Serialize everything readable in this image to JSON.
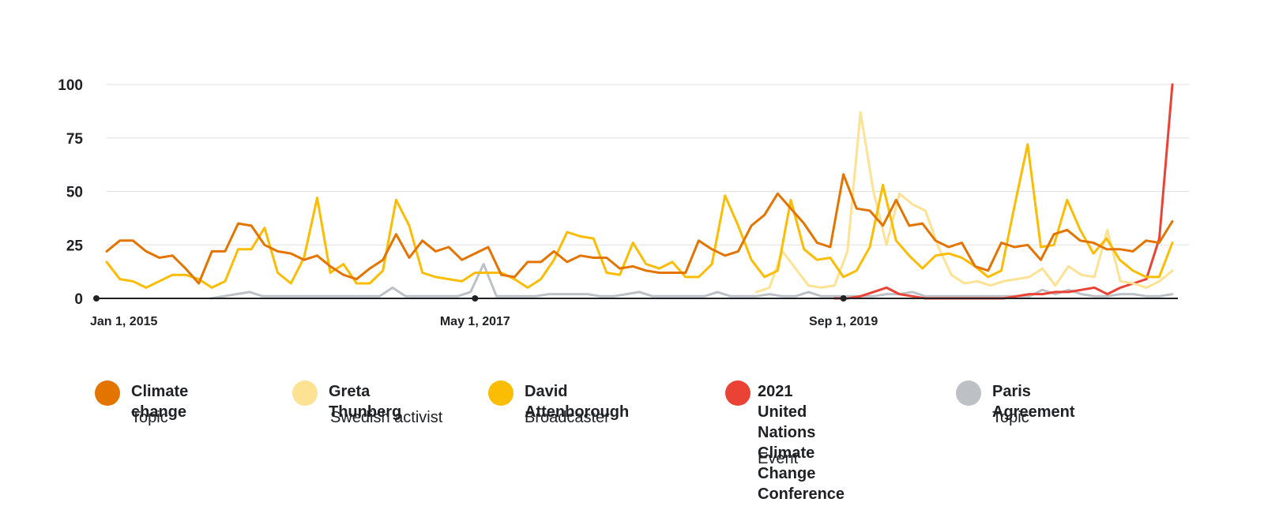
{
  "chart_data": {
    "type": "line",
    "title": "",
    "xlabel": "",
    "ylabel": "",
    "ylim": [
      0,
      100
    ],
    "yticks": [
      "100",
      "75",
      "50",
      "25",
      "0"
    ],
    "x_tick_labels": [
      "Jan 1, 2015",
      "May 1, 2017",
      "Sep 1, 2019"
    ],
    "grid": true,
    "legend_position": "bottom",
    "series": [
      {
        "name": "Climate change",
        "description": "Topic",
        "color": "#e37400",
        "values": [
          22,
          27,
          27,
          22,
          19,
          20,
          14,
          7,
          22,
          22,
          35,
          34,
          25,
          22,
          21,
          18,
          20,
          15,
          11,
          9,
          14,
          18,
          30,
          19,
          27,
          22,
          24,
          18,
          21,
          24,
          11,
          10,
          17,
          17,
          22,
          17,
          20,
          19,
          19,
          14,
          15,
          13,
          12,
          12,
          12,
          27,
          23,
          20,
          22,
          34,
          39,
          49,
          42,
          35,
          26,
          24,
          58,
          42,
          41,
          34,
          46,
          34,
          35,
          27,
          24,
          26,
          15,
          13,
          26,
          24,
          25,
          18,
          30,
          32,
          27,
          26,
          23,
          23,
          22,
          27,
          26,
          36
        ]
      },
      {
        "name": "Greta Thunberg",
        "description": "Swedish activist",
        "color": "#fde293",
        "values": [
          null,
          null,
          null,
          null,
          null,
          null,
          null,
          null,
          null,
          null,
          null,
          null,
          null,
          null,
          null,
          null,
          null,
          null,
          null,
          null,
          null,
          null,
          null,
          null,
          null,
          null,
          null,
          null,
          null,
          null,
          null,
          null,
          null,
          null,
          null,
          null,
          null,
          null,
          null,
          null,
          null,
          null,
          null,
          null,
          null,
          null,
          null,
          null,
          null,
          null,
          3,
          5,
          22,
          14,
          6,
          5,
          6,
          22,
          87,
          50,
          25,
          49,
          44,
          41,
          24,
          11,
          7,
          8,
          6,
          8,
          9,
          10,
          14,
          6,
          15,
          11,
          10,
          32,
          8,
          7,
          5,
          8,
          13
        ]
      },
      {
        "name": "David Attenborough",
        "description": "Broadcaster",
        "color": "#fbbc04",
        "values": [
          17,
          9,
          8,
          5,
          8,
          11,
          11,
          9,
          5,
          8,
          23,
          23,
          33,
          12,
          7,
          19,
          47,
          12,
          16,
          7,
          7,
          13,
          46,
          34,
          12,
          10,
          9,
          8,
          12,
          12,
          12,
          9,
          5,
          9,
          18,
          31,
          29,
          28,
          12,
          11,
          26,
          16,
          14,
          17,
          10,
          10,
          16,
          48,
          34,
          18,
          10,
          13,
          46,
          23,
          18,
          19,
          10,
          13,
          24,
          53,
          27,
          20,
          14,
          20,
          21,
          19,
          15,
          10,
          13,
          43,
          72,
          24,
          25,
          46,
          32,
          21,
          28,
          18,
          13,
          10,
          10,
          26
        ]
      },
      {
        "name": "2021 United Nations\nClimate Change\nConference",
        "description": "Event",
        "color": "#ea4335",
        "values": [
          null,
          null,
          null,
          null,
          null,
          null,
          null,
          null,
          null,
          null,
          null,
          null,
          null,
          null,
          null,
          null,
          null,
          null,
          null,
          null,
          null,
          null,
          null,
          null,
          null,
          null,
          null,
          null,
          null,
          null,
          null,
          null,
          null,
          null,
          null,
          null,
          null,
          null,
          null,
          null,
          null,
          null,
          null,
          null,
          null,
          null,
          null,
          null,
          null,
          null,
          null,
          null,
          null,
          null,
          null,
          null,
          0,
          0,
          1,
          3,
          5,
          2,
          1,
          0,
          0,
          0,
          0,
          0,
          0,
          0,
          1,
          2,
          2,
          3,
          3,
          4,
          5,
          2,
          5,
          7,
          9,
          28,
          100
        ]
      },
      {
        "name": "Paris Agreement",
        "description": "Topic",
        "color": "#bdc1c6",
        "values": [
          null,
          null,
          null,
          null,
          null,
          null,
          null,
          null,
          0,
          1,
          2,
          3,
          1,
          1,
          1,
          1,
          1,
          1,
          1,
          1,
          1,
          1,
          5,
          1,
          1,
          1,
          1,
          1,
          3,
          16,
          1,
          1,
          1,
          1,
          2,
          2,
          2,
          2,
          1,
          1,
          2,
          3,
          1,
          1,
          1,
          1,
          1,
          3,
          1,
          1,
          1,
          2,
          1,
          1,
          3,
          1,
          1,
          1,
          1,
          1,
          2,
          2,
          3,
          1,
          1,
          1,
          1,
          1,
          1,
          1,
          1,
          1,
          4,
          2,
          4,
          2,
          1,
          1,
          2,
          2,
          1,
          1,
          2
        ]
      }
    ]
  }
}
